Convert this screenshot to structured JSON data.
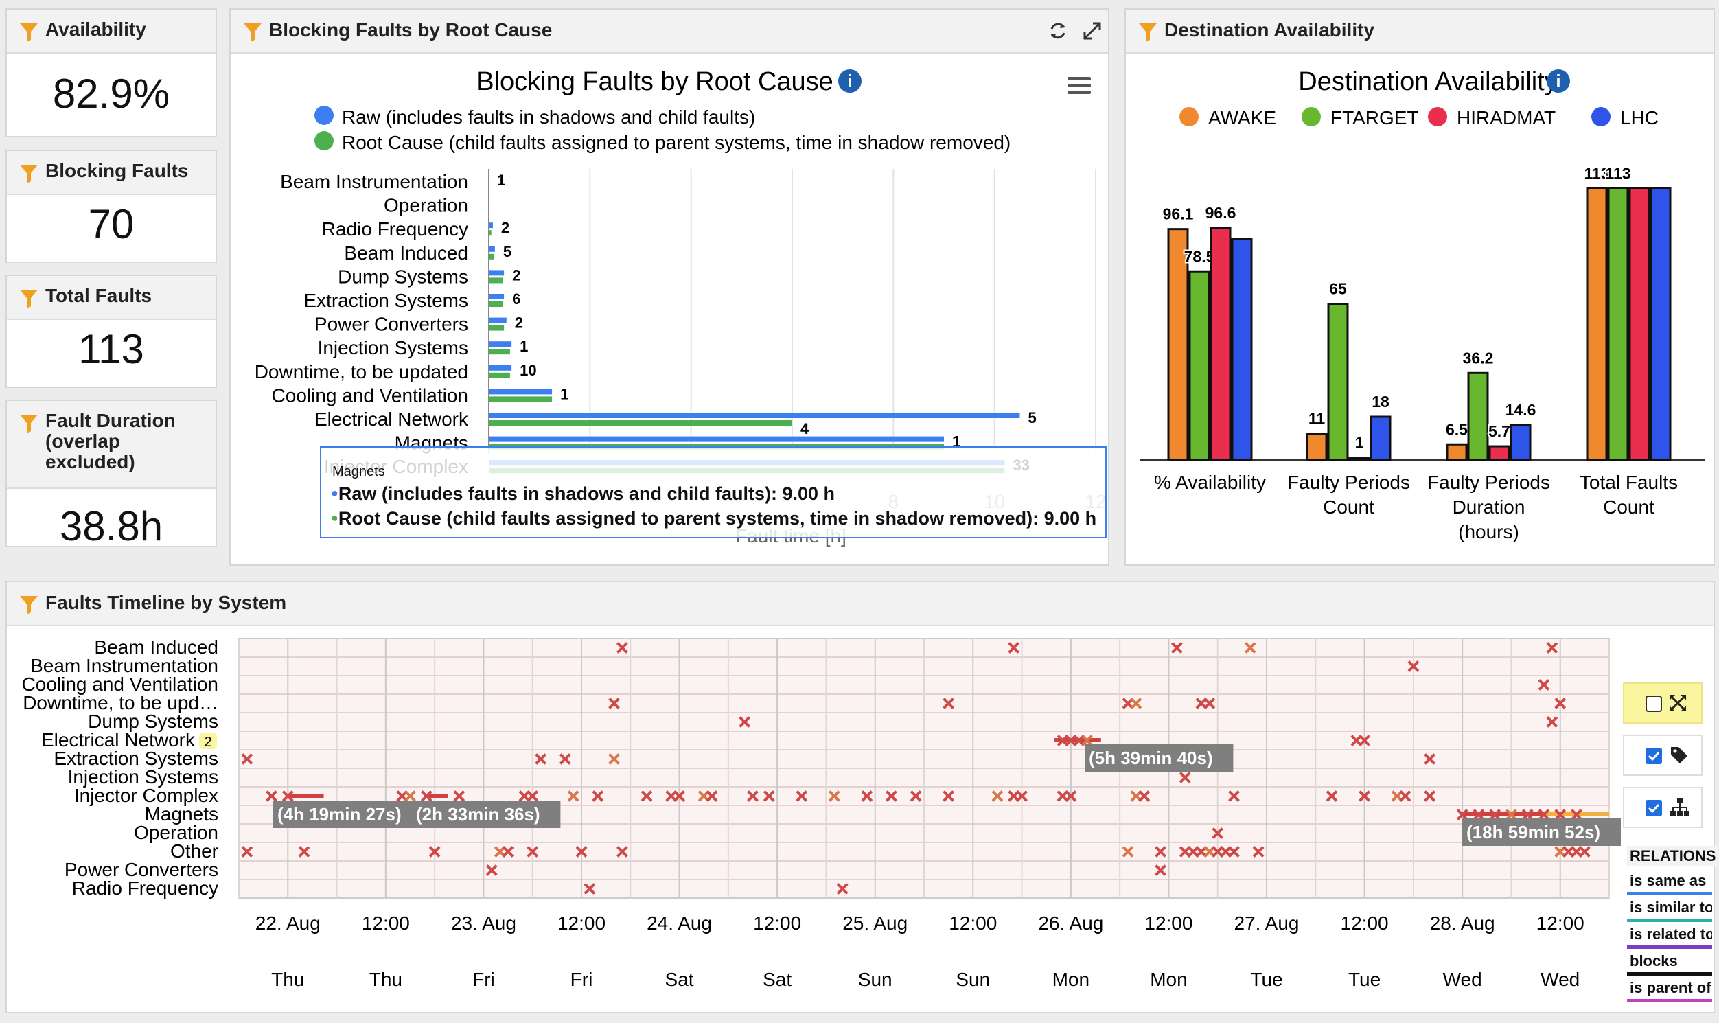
{
  "kpis": [
    {
      "label": "Availability",
      "value": "82.9%"
    },
    {
      "label": "Blocking Faults",
      "value": "70"
    },
    {
      "label": "Total Faults",
      "value": "113"
    },
    {
      "label": "Fault Duration",
      "sub1": "(overlap",
      "sub2": "excluded)",
      "value": "38.8h"
    }
  ],
  "blocking": {
    "panel_title": "Blocking Faults by Root Cause",
    "chart_title": "Blocking Faults by Root Cause",
    "legend": [
      {
        "label": "Raw (includes faults in shadows and child faults)",
        "color": "#3d7ff0"
      },
      {
        "label": "Root Cause (child faults assigned to parent systems, time in shadow removed)",
        "color": "#4caf50"
      }
    ],
    "xlabel": "Fault time [h]",
    "tooltip": {
      "title": "Magnets",
      "line1": "Raw (includes faults in shadows and child faults): 9.00 h",
      "line2": "Root Cause (child faults assigned to parent systems, time in shadow removed): 9.00 h"
    }
  },
  "destination": {
    "panel_title": "Destination Availability",
    "chart_title": "Destination Availability"
  },
  "timeline": {
    "panel_title": "Faults Timeline by System",
    "systems": [
      "Beam Induced",
      "Beam Instrumentation",
      "Cooling and Ventilation",
      "Downtime, to be upd…",
      "Dump Systems",
      "Electrical Network",
      "Extraction Systems",
      "Injection Systems",
      "Injector Complex",
      "Magnets",
      "Operation",
      "Other",
      "Power Converters",
      "Radio Frequency"
    ],
    "electrical_badge": "2",
    "dates": [
      "22. Aug",
      "12:00",
      "23. Aug",
      "12:00",
      "24. Aug",
      "12:00",
      "25. Aug",
      "12:00",
      "26. Aug",
      "12:00",
      "27. Aug",
      "12:00",
      "28. Aug",
      "12:00"
    ],
    "days": [
      "Thu",
      "Thu",
      "Fri",
      "Fri",
      "Sat",
      "Sat",
      "Sun",
      "Sun",
      "Mon",
      "Mon",
      "Tue",
      "Tue",
      "Wed",
      "Wed"
    ],
    "durations": [
      {
        "label": "(4h 19min 27s)"
      },
      {
        "label": "(2h 33min 36s)"
      },
      {
        "label": "(5h 39min 40s)"
      },
      {
        "label": "(18h 59min 52s)"
      }
    ],
    "relations_title": "RELATIONS",
    "relations": [
      {
        "label": "is same as",
        "color": "#3d7ff0"
      },
      {
        "label": "is similar to",
        "color": "#2ab0b0"
      },
      {
        "label": "is related to",
        "color": "#7b3fc4"
      },
      {
        "label": "blocks",
        "color": "#111111"
      },
      {
        "label": "is parent of",
        "color": "#c23fc4"
      }
    ]
  },
  "chart_data": [
    {
      "type": "bar",
      "orientation": "horizontal",
      "title": "Blocking Faults by Root Cause",
      "xlabel": "Fault time [h]",
      "xlim": [
        0,
        12
      ],
      "xticks": [
        8,
        10,
        12
      ],
      "categories": [
        "Beam Instrumentation",
        "Operation",
        "Radio Frequency",
        "Beam Induced",
        "Dump Systems",
        "Extraction Systems",
        "Power Converters",
        "Injection Systems",
        "Downtime, to be updated",
        "Cooling and Ventilation",
        "Electrical Network",
        "Magnets",
        "Injector Complex"
      ],
      "series": [
        {
          "name": "Raw (includes faults in shadows and child faults)",
          "color": "#3d7ff0",
          "values": [
            0,
            0,
            0.08,
            0.12,
            0.3,
            0.3,
            0.35,
            0.45,
            0.45,
            1.25,
            10.5,
            9.0,
            10.2
          ]
        },
        {
          "name": "Root Cause (child faults assigned to parent systems, time in shadow removed)",
          "color": "#4caf50",
          "values": [
            0,
            0,
            0.05,
            0.1,
            0.28,
            0.28,
            0.3,
            0.42,
            0.42,
            1.25,
            6.0,
            9.0,
            10.2
          ]
        }
      ],
      "data_labels": [
        "1",
        "",
        "2",
        "5",
        "2",
        "6",
        "2",
        "1",
        "10",
        "1",
        "5",
        "1",
        "33"
      ],
      "data_labels_green": [
        "",
        "",
        "",
        "",
        "",
        "",
        "",
        "",
        "",
        "",
        "4",
        "",
        ""
      ]
    },
    {
      "type": "bar",
      "title": "Destination Availability",
      "categories": [
        [
          "% Availability"
        ],
        [
          "Faulty Periods",
          "Count"
        ],
        [
          "Faulty Periods",
          "Duration",
          "(hours)"
        ],
        [
          "Total Faults",
          "Count"
        ]
      ],
      "series": [
        {
          "name": "AWAKE",
          "color": "#f0892e",
          "values": [
            96.1,
            11,
            6.5,
            113
          ]
        },
        {
          "name": "FTARGET",
          "color": "#67b82e",
          "values": [
            78.5,
            65,
            36.2,
            113
          ]
        },
        {
          "name": "HIRADMAT",
          "color": "#ea2e4e",
          "values": [
            96.6,
            1,
            5.7,
            113
          ]
        },
        {
          "name": "LHC",
          "color": "#2e54ea",
          "values": [
            92.0,
            18,
            14.6,
            113
          ]
        }
      ],
      "labels": [
        [
          "96.1",
          "78.5",
          "96.6",
          ""
        ],
        [
          "11",
          "65",
          "1",
          "18"
        ],
        [
          "6.5",
          "36.2",
          "5.7",
          "14.6"
        ],
        [
          "113",
          "113",
          "",
          ""
        ]
      ],
      "ylim": [
        0,
        120
      ]
    },
    {
      "type": "scatter",
      "title": "Faults Timeline by System",
      "xlim_hours": [
        0,
        168
      ],
      "x_tick_hours": [
        6,
        18,
        30,
        42,
        54,
        66,
        78,
        90,
        102,
        114,
        126,
        138,
        150,
        162
      ],
      "points": [
        {
          "sys": 0,
          "h": [
            47,
            95,
            115,
            124,
            161
          ]
        },
        {
          "sys": 1,
          "h": [
            144
          ]
        },
        {
          "sys": 2,
          "h": [
            160
          ]
        },
        {
          "sys": 3,
          "h": [
            46,
            87,
            109,
            110,
            118,
            119,
            162
          ]
        },
        {
          "sys": 4,
          "h": [
            62,
            161
          ]
        },
        {
          "sys": 5,
          "h": [
            101,
            102,
            103,
            104,
            137,
            138
          ]
        },
        {
          "sys": 6,
          "h": [
            1,
            37,
            40,
            46,
            146
          ]
        },
        {
          "sys": 7,
          "h": [
            116
          ]
        },
        {
          "sys": 8,
          "h": [
            4,
            6,
            20,
            21,
            23,
            27,
            35,
            36,
            41,
            44,
            50,
            53,
            54,
            57,
            58,
            63,
            65,
            69,
            73,
            77,
            80,
            83,
            87,
            93,
            95,
            96,
            101,
            102,
            110,
            111,
            122,
            134,
            138,
            142,
            143,
            146
          ]
        },
        {
          "sys": 9,
          "h": [
            150,
            152,
            154,
            156,
            158,
            160,
            162,
            164
          ]
        },
        {
          "sys": 10,
          "h": [
            120
          ]
        },
        {
          "sys": 11,
          "h": [
            1,
            8,
            24,
            32,
            33,
            36,
            42,
            47,
            109,
            113,
            116,
            117,
            118,
            119,
            120,
            121,
            122,
            125,
            162,
            163,
            164,
            165
          ]
        },
        {
          "sys": 12,
          "h": [
            31,
            113
          ]
        },
        {
          "sys": 13,
          "h": [
            43,
            74
          ]
        }
      ]
    }
  ]
}
